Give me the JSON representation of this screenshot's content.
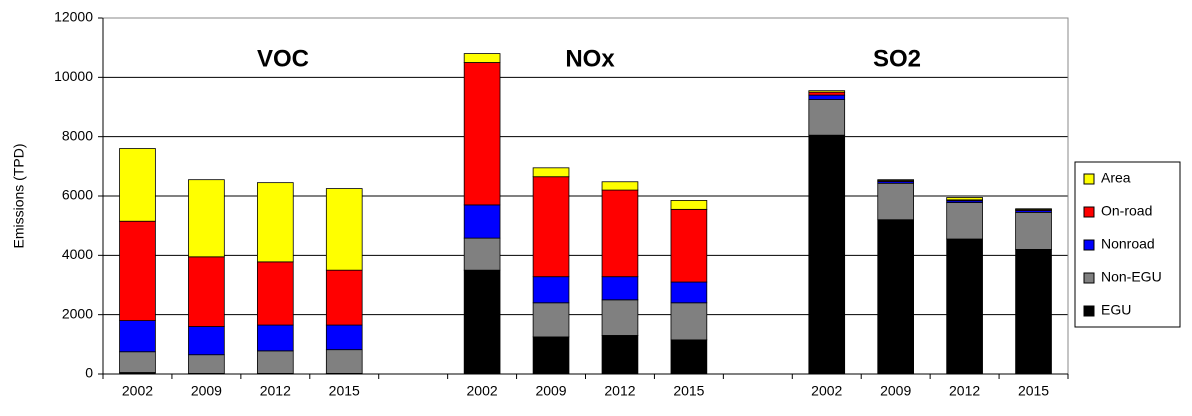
{
  "chart_data": {
    "type": "stacked-bar",
    "y_label": "Emissions (TPD)",
    "annotations": [
      "VOC",
      "NOx",
      "SO2"
    ],
    "categories": [
      "2002",
      "2009",
      "2012",
      "2015",
      null,
      "2002",
      "2009",
      "2012",
      "2015",
      null,
      "2002",
      "2009",
      "2012",
      "2015"
    ],
    "series": [
      {
        "name": "EGU",
        "color": "#000000",
        "values": [
          50,
          20,
          20,
          20,
          null,
          3500,
          1250,
          1300,
          1150,
          null,
          8050,
          5200,
          4550,
          4200
        ]
      },
      {
        "name": "Non-EGU",
        "color": "#808080",
        "values": [
          700,
          630,
          760,
          800,
          null,
          1080,
          1150,
          1200,
          1250,
          null,
          1200,
          1230,
          1230,
          1250
        ]
      },
      {
        "name": "Nonroad",
        "color": "#0000ff",
        "values": [
          1050,
          950,
          870,
          830,
          null,
          1120,
          880,
          780,
          700,
          null,
          150,
          60,
          60,
          60
        ]
      },
      {
        "name": "On-road",
        "color": "#ff0000",
        "values": [
          3350,
          2350,
          2130,
          1850,
          null,
          4800,
          3370,
          2920,
          2450,
          null,
          100,
          30,
          30,
          30
        ]
      },
      {
        "name": "Area",
        "color": "#ffff00",
        "values": [
          2450,
          2600,
          2670,
          2750,
          null,
          300,
          300,
          280,
          300,
          null,
          50,
          30,
          80,
          30
        ]
      }
    ],
    "ylim": [
      0,
      12000
    ],
    "yticks": [
      0,
      2000,
      4000,
      6000,
      8000,
      10000,
      12000
    ],
    "grid": true,
    "legend": "right"
  }
}
